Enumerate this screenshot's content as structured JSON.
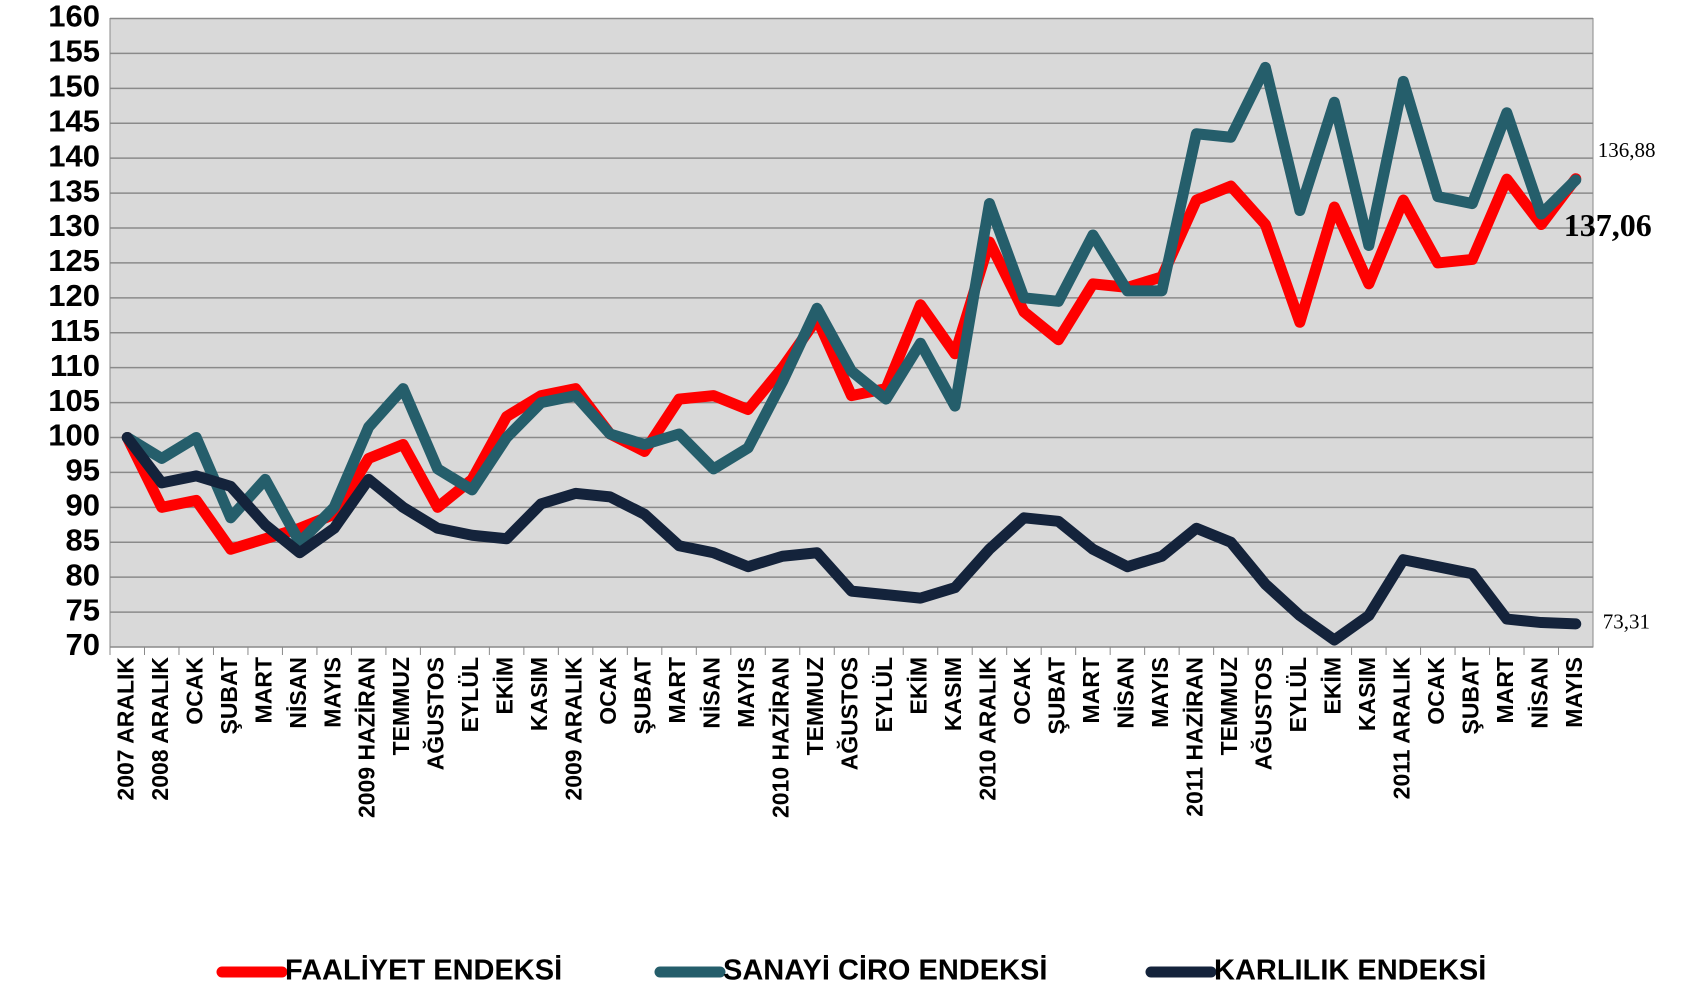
{
  "chart_data": {
    "type": "line",
    "categories": [
      "2007 ARALIK",
      "2008 ARALIK",
      "OCAK",
      "ŞUBAT",
      "MART",
      "NİSAN",
      "MAYIS",
      "2009 HAZİRAN",
      "TEMMUZ",
      "AĞUSTOS",
      "EYLÜL",
      "EKİM",
      "KASIM",
      "2009 ARALIK",
      "OCAK",
      "ŞUBAT",
      "MART",
      "NİSAN",
      "MAYIS",
      "2010 HAZİRAN",
      "TEMMUZ",
      "AĞUSTOS",
      "EYLÜL",
      "EKİM",
      "KASIM",
      "2010 ARALIK",
      "OCAK",
      "ŞUBAT",
      "MART",
      "NİSAN",
      "MAYIS",
      "2011 HAZİRAN",
      "TEMMUZ",
      "AĞUSTOS",
      "EYLÜL",
      "EKİM",
      "KASIM",
      "2011 ARALIK",
      "OCAK",
      "ŞUBAT",
      "MART",
      "NİSAN",
      "MAYIS"
    ],
    "series": [
      {
        "name": "FAALİYET ENDEKSİ",
        "color": "#ff0000",
        "values": [
          100,
          90,
          91,
          84,
          85.5,
          87,
          89,
          97,
          99,
          90,
          94,
          103,
          106,
          107,
          100.5,
          98,
          105.5,
          106,
          104,
          110,
          117,
          106,
          107,
          119,
          112,
          128,
          118,
          114,
          122,
          121.5,
          123,
          134,
          136,
          130.5,
          116.5,
          133,
          122,
          134,
          125,
          125.5,
          137,
          130.5,
          137.06
        ],
        "value_labels": [
          null,
          null,
          null,
          null,
          null,
          null,
          null,
          null,
          null,
          null,
          null,
          null,
          null,
          null,
          null,
          null,
          null,
          null,
          null,
          null,
          null,
          null,
          null,
          null,
          null,
          null,
          null,
          null,
          null,
          null,
          null,
          null,
          null,
          null,
          null,
          null,
          null,
          null,
          null,
          null,
          null,
          null,
          "137,06"
        ]
      },
      {
        "name": "SANAYİ CİRO ENDEKSİ",
        "color": "#255e6b",
        "values": [
          100,
          97,
          100,
          88.5,
          94,
          85,
          90,
          101.5,
          107,
          95.5,
          92.5,
          100,
          105,
          106,
          100.5,
          99,
          100.5,
          95.5,
          98.5,
          108,
          118.5,
          109.5,
          105.5,
          113.5,
          104.5,
          133.5,
          120,
          119.5,
          129,
          121,
          121,
          143.5,
          143,
          153,
          132.5,
          148,
          127.5,
          151,
          134.5,
          133.5,
          146.5,
          132,
          136.88
        ],
        "value_labels": [
          null,
          null,
          null,
          null,
          null,
          null,
          null,
          null,
          null,
          null,
          null,
          null,
          null,
          null,
          null,
          null,
          null,
          null,
          null,
          null,
          null,
          null,
          null,
          null,
          null,
          null,
          null,
          null,
          null,
          null,
          null,
          null,
          null,
          null,
          null,
          null,
          null,
          null,
          null,
          null,
          null,
          null,
          "136,88"
        ]
      },
      {
        "name": "KARLILIK ENDEKSİ",
        "color": "#14233b",
        "values": [
          100,
          93.5,
          94.5,
          93,
          87.5,
          83.5,
          87,
          94,
          90,
          87,
          86,
          85.5,
          90.5,
          92,
          91.5,
          89,
          84.5,
          83.5,
          81.5,
          83,
          83.5,
          78,
          77.5,
          77,
          78.5,
          84,
          88.5,
          88,
          84,
          81.5,
          83,
          87,
          85,
          79,
          74.5,
          71,
          74.5,
          82.5,
          81.5,
          80.5,
          74,
          73.5,
          73.31
        ],
        "value_labels": [
          null,
          null,
          null,
          null,
          null,
          null,
          null,
          null,
          null,
          null,
          null,
          null,
          null,
          null,
          null,
          null,
          null,
          null,
          null,
          null,
          null,
          null,
          null,
          null,
          null,
          null,
          null,
          null,
          null,
          null,
          null,
          null,
          null,
          null,
          null,
          null,
          null,
          null,
          null,
          null,
          null,
          null,
          "73,31"
        ]
      }
    ],
    "ylim": [
      70,
      160
    ],
    "yticks": [
      70,
      75,
      80,
      85,
      90,
      95,
      100,
      105,
      110,
      115,
      120,
      125,
      130,
      135,
      140,
      145,
      150,
      155,
      160
    ],
    "grid": true,
    "legend": "bottom"
  }
}
